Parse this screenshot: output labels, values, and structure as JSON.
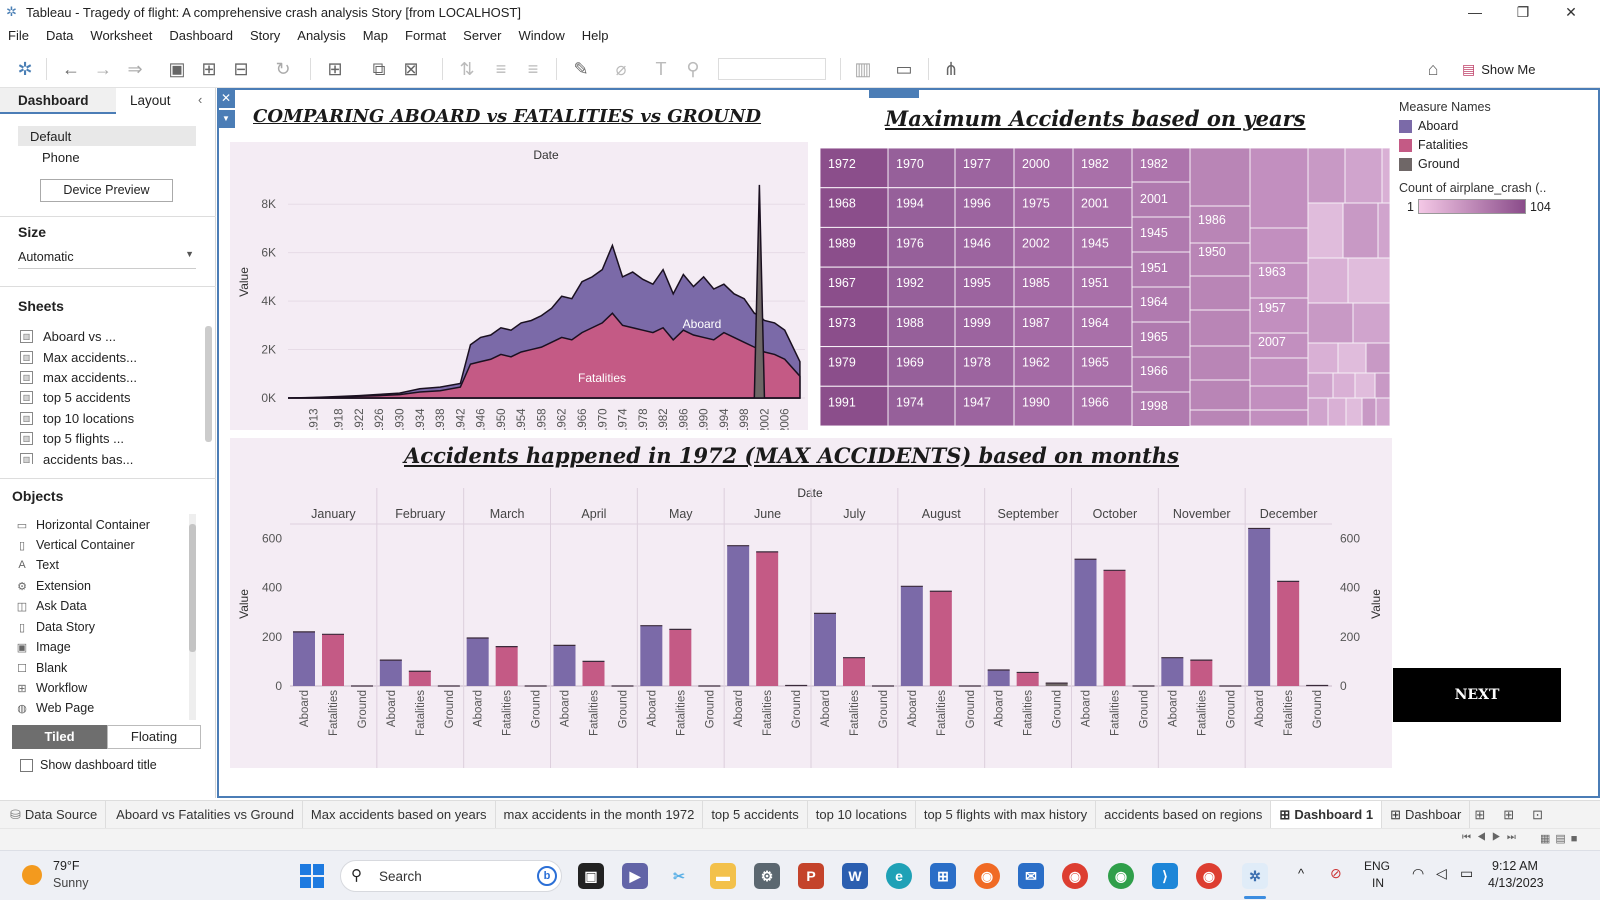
{
  "window": {
    "title": "Tableau - Tragedy of flight: A comprehensive crash analysis Story [from LOCALHOST]"
  },
  "menu": [
    "File",
    "Data",
    "Worksheet",
    "Dashboard",
    "Story",
    "Analysis",
    "Map",
    "Format",
    "Server",
    "Window",
    "Help"
  ],
  "toolbar": {
    "show_me": "Show Me"
  },
  "left_pane": {
    "tabs": {
      "dashboard": "Dashboard",
      "layout": "Layout"
    },
    "device": {
      "default": "Default",
      "phone": "Phone",
      "preview": "Device Preview"
    },
    "size": {
      "heading": "Size",
      "value": "Automatic"
    },
    "sheets_heading": "Sheets",
    "sheets": [
      "Aboard vs ...",
      "Max accidents...",
      "max accidents...",
      "top 5 accidents",
      "top 10 locations",
      " top 5 flights ...",
      "accidents bas..."
    ],
    "objects_heading": "Objects",
    "objects": [
      "Horizontal Container",
      "Vertical Container",
      "Text",
      "Extension",
      "Ask Data",
      "Data Story",
      "Image",
      "Blank",
      "Workflow",
      "Web Page"
    ],
    "tiled": "Tiled",
    "floating": "Floating",
    "show_title": "Show dashboard title"
  },
  "colors": {
    "aboard": "#7b6aa8",
    "fatalities": "#c45a85",
    "ground": "#6f6767",
    "accent": "#4b7db6"
  },
  "area_chart": {
    "title": "COMPARING ABOARD vs FATALITIES vs GROUND",
    "header": "Date",
    "ylabel": "Value",
    "label_aboard": "Aboard",
    "label_fatalities": "Fatalities"
  },
  "treemap": {
    "title": "Maximum Accidents based on years",
    "labels": [
      "1972",
      "1968",
      "1989",
      "1967",
      "1973",
      "1979",
      "1991",
      "1970",
      "1994",
      "1976",
      "1992",
      "1988",
      "1969",
      "1974",
      "1977",
      "1996",
      "1946",
      "1995",
      "1999",
      "1978",
      "1947",
      "2000",
      "1975",
      "2002",
      "1985",
      "1987",
      "1962",
      "1990",
      "1982",
      "2001",
      "1945",
      "1951",
      "1964",
      "1965",
      "1966",
      "1998",
      "1986",
      "1950",
      "1963",
      "1957",
      "2007"
    ]
  },
  "legend": {
    "measure_names_title": "Measure Names",
    "items": [
      "Aboard",
      "Fatalities",
      "Ground"
    ],
    "count_title": "Count of airplane_crash (..",
    "min": "1",
    "max": "104"
  },
  "bar_chart": {
    "title": "Accidents happened in 1972 (MAX ACCIDENTS) based on months",
    "header": "Date",
    "ylabel": "Value"
  },
  "next_button": "NEXT",
  "chart_data": [
    {
      "type": "area",
      "title": "COMPARING ABOARD vs FATALITIES vs GROUND",
      "xlabel": "Date",
      "ylabel": "Value",
      "x_tick_labels": [
        "1913",
        "1918",
        "1922",
        "1926",
        "1930",
        "1934",
        "1938",
        "1942",
        "1946",
        "1950",
        "1954",
        "1958",
        "1962",
        "1966",
        "1970",
        "1974",
        "1978",
        "1982",
        "1986",
        "1990",
        "1994",
        "1998",
        "2002",
        "2006"
      ],
      "y_tick_labels": [
        "0K",
        "2K",
        "4K",
        "6K",
        "8K"
      ],
      "ylim": [
        0,
        9000
      ],
      "x": [
        1908,
        1913,
        1918,
        1922,
        1926,
        1930,
        1934,
        1938,
        1942,
        1944,
        1946,
        1948,
        1950,
        1952,
        1954,
        1956,
        1958,
        1960,
        1962,
        1964,
        1966,
        1968,
        1970,
        1972,
        1974,
        1976,
        1978,
        1980,
        1982,
        1984,
        1986,
        1988,
        1990,
        1992,
        1994,
        1996,
        1998,
        2000,
        2001,
        2002,
        2004,
        2006,
        2009
      ],
      "series": [
        {
          "name": "Aboard",
          "values": [
            0,
            20,
            60,
            100,
            150,
            200,
            380,
            450,
            600,
            2200,
            2500,
            2600,
            2900,
            2800,
            3100,
            3200,
            3400,
            3700,
            4200,
            4100,
            4800,
            5000,
            5300,
            6300,
            5000,
            5200,
            4900,
            4700,
            5300,
            4300,
            5100,
            4600,
            5000,
            4500,
            4700,
            4300,
            4100,
            3500,
            3400,
            3200,
            3100,
            2800,
            1500
          ]
        },
        {
          "name": "Fatalities",
          "values": [
            0,
            15,
            40,
            70,
            100,
            140,
            250,
            300,
            450,
            1400,
            1500,
            1600,
            1800,
            1700,
            1900,
            2000,
            2100,
            2300,
            2500,
            2400,
            2700,
            2900,
            3100,
            3500,
            3000,
            2900,
            2800,
            2700,
            2900,
            2400,
            2800,
            2600,
            2500,
            2400,
            2700,
            2500,
            2300,
            2100,
            2000,
            1900,
            1800,
            1600,
            900
          ]
        },
        {
          "name": "Ground",
          "values": [
            0,
            0,
            0,
            0,
            0,
            0,
            0,
            0,
            0,
            0,
            0,
            0,
            0,
            0,
            0,
            0,
            0,
            0,
            0,
            0,
            0,
            0,
            0,
            0,
            0,
            0,
            0,
            0,
            0,
            0,
            0,
            0,
            0,
            0,
            0,
            0,
            0,
            0,
            8800,
            0,
            0,
            0,
            0
          ]
        }
      ]
    },
    {
      "type": "heatmap",
      "title": "Maximum Accidents based on years",
      "colorbar_range": [
        1,
        104
      ],
      "categories": [
        "1972",
        "1968",
        "1989",
        "1967",
        "1973",
        "1979",
        "1991",
        "1970",
        "1994",
        "1976",
        "1992",
        "1988",
        "1969",
        "1974",
        "1977",
        "1996",
        "1946",
        "1995",
        "1999",
        "1978",
        "1947",
        "2000",
        "1975",
        "2002",
        "1985",
        "1987",
        "1962",
        "1990",
        "1982",
        "2001",
        "1945",
        "1951",
        "1964",
        "1965",
        "1966",
        "1998",
        "1986",
        "1950",
        "1963",
        "1957",
        "2007"
      ]
    },
    {
      "type": "bar",
      "title": "Accidents happened in 1972 (MAX ACCIDENTS) based on months",
      "xlabel": "Date",
      "ylabel": "Value",
      "ylim": [
        0,
        650
      ],
      "y_tick_labels": [
        "0",
        "200",
        "400",
        "600"
      ],
      "categories": [
        "January",
        "February",
        "March",
        "April",
        "May",
        "June",
        "July",
        "August",
        "September",
        "October",
        "November",
        "December"
      ],
      "measures": [
        "Aboard",
        "Fatalities",
        "Ground"
      ],
      "series": [
        {
          "name": "Aboard",
          "values": [
            220,
            105,
            195,
            165,
            245,
            570,
            295,
            405,
            65,
            515,
            115,
            640
          ]
        },
        {
          "name": "Fatalities",
          "values": [
            210,
            60,
            160,
            100,
            230,
            545,
            115,
            385,
            55,
            470,
            105,
            425
          ]
        },
        {
          "name": "Ground",
          "values": [
            0,
            0,
            0,
            0,
            0,
            2,
            0,
            0,
            12,
            0,
            0,
            2
          ]
        }
      ]
    }
  ],
  "bottom_tabs": [
    "Data Source",
    "Aboard vs Fatalities vs Ground",
    "Max accidents based on years",
    "max accidents in the month 1972",
    "top 5 accidents",
    "top 10 locations",
    "top 5 flights with max history",
    "accidents based on regions",
    "Dashboard 1",
    "Dashboar"
  ],
  "taskbar": {
    "weather_temp": "79°F",
    "weather_desc": "Sunny",
    "search": "Search",
    "lang1": "ENG",
    "lang2": "IN",
    "time": "9:12 AM",
    "date": "4/13/2023"
  }
}
